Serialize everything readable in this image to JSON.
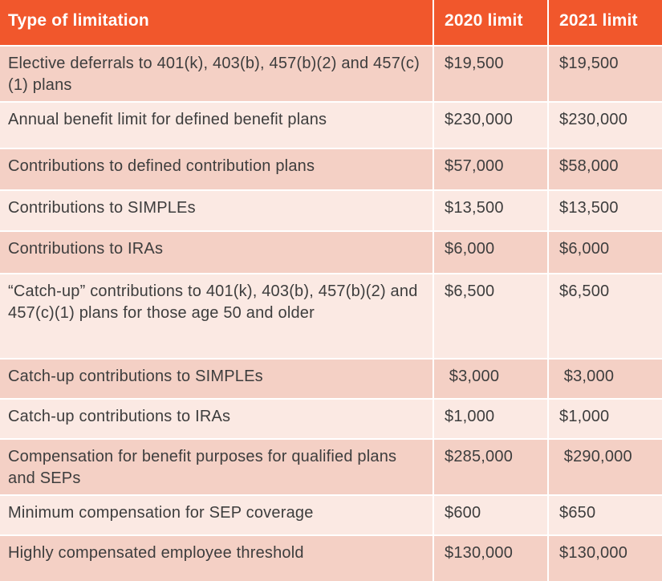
{
  "colors": {
    "header_bg": "#F1572C",
    "header_text": "#FFFFFF",
    "row_odd_bg": "#F4D0C5",
    "row_even_bg": "#FBE9E3",
    "text": "#3D3D3D",
    "divider": "#FFFFFF"
  },
  "table": {
    "columns": [
      {
        "label": "Type of limitation"
      },
      {
        "label": "2020 limit"
      },
      {
        "label": "2021 limit"
      }
    ],
    "rows": [
      {
        "type": "Elective deferrals to 401(k), 403(b), 457(b)(2) and 457(c)(1) plans",
        "limit_2020": "$19,500",
        "limit_2021": "$19,500"
      },
      {
        "type": "Annual benefit limit for defined benefit plans",
        "limit_2020": "$230,000",
        "limit_2021": "$230,000"
      },
      {
        "type": "Contributions to defined contribution plans",
        "limit_2020": "$57,000",
        "limit_2021": "$58,000"
      },
      {
        "type": "Contributions to SIMPLEs",
        "limit_2020": "$13,500",
        "limit_2021": "$13,500"
      },
      {
        "type": "Contributions to IRAs",
        "limit_2020": "$6,000",
        "limit_2021": "$6,000"
      },
      {
        "type": "“Catch-up” contributions to 401(k), 403(b), 457(b)(2) and 457(c)(1) plans for those age 50 and older",
        "limit_2020": "$6,500",
        "limit_2021": "$6,500"
      },
      {
        "type": "Catch-up contributions to SIMPLEs",
        "limit_2020": " $3,000",
        "limit_2021": " $3,000"
      },
      {
        "type": "Catch-up contributions to IRAs",
        "limit_2020": "$1,000",
        "limit_2021": "$1,000"
      },
      {
        "type": "Compensation for benefit purposes for qualified plans and SEPs",
        "limit_2020": "$285,000",
        "limit_2021": " $290,000"
      },
      {
        "type": "Minimum compensation for SEP coverage",
        "limit_2020": "$600",
        "limit_2021": "$650"
      },
      {
        "type": "Highly compensated employee threshold",
        "limit_2020": "$130,000",
        "limit_2021": "$130,000"
      }
    ]
  }
}
